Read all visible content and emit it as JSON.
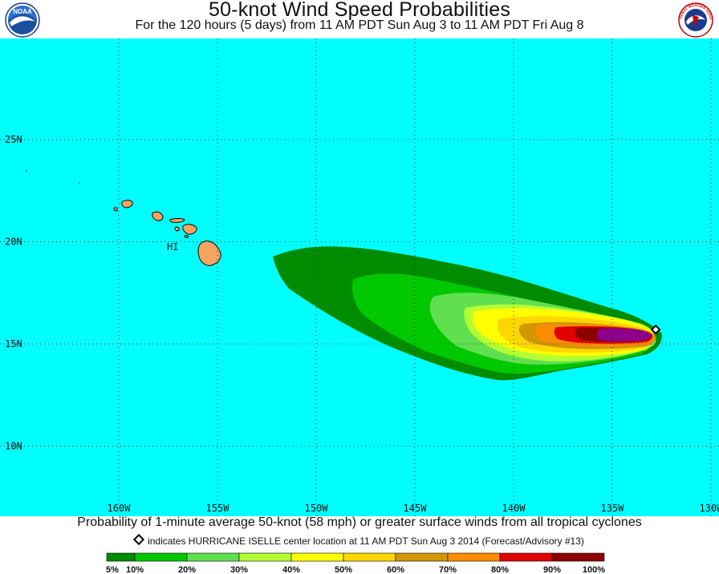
{
  "header": {
    "title": "50-knot Wind Speed Probabilities",
    "subtitle": "For the 120 hours (5 days) from 11 AM PDT Sun Aug 3 to 11 AM PDT Fri Aug 8"
  },
  "logos": {
    "left": {
      "text": "NOAA",
      "icon": "noaa-logo"
    },
    "right": {
      "text": "NATIONAL WEATHER SERVICE",
      "icon": "nws-logo"
    }
  },
  "map": {
    "ocean_color": "#00FFFF",
    "land_color": "#F4A460",
    "latitudes": [
      {
        "value": 25,
        "label": "25N"
      },
      {
        "value": 20,
        "label": "20N"
      },
      {
        "value": 15,
        "label": "15N"
      },
      {
        "value": 10,
        "label": "10N"
      }
    ],
    "longitudes": [
      {
        "value": -160,
        "label": "160W"
      },
      {
        "value": -155,
        "label": "155W"
      },
      {
        "value": -150,
        "label": "150W"
      },
      {
        "value": -145,
        "label": "145W"
      },
      {
        "value": -140,
        "label": "140W"
      },
      {
        "value": -135,
        "label": "135W"
      },
      {
        "value": -130,
        "label": "130W"
      }
    ],
    "state_label": "HI",
    "storm": {
      "name": "HURRICANE ISELLE",
      "lon": -132.8,
      "lat": 15.7
    }
  },
  "caption": "Probability of 1-minute average 50-knot (58 mph) or greater surface winds from all tropical cyclones",
  "indicator": "indicates HURRICANE ISELLE center location at 11 AM PDT Sun Aug 3 2014 (Forecast/Advisory #13)",
  "legend": {
    "labels": [
      "5%",
      "10%",
      "20%",
      "30%",
      "40%",
      "50%",
      "60%",
      "70%",
      "80%",
      "90%",
      "100%"
    ],
    "colors": [
      "#008C00",
      "#00C800",
      "#60E050",
      "#B4FF32",
      "#FFFF00",
      "#FFD700",
      "#D29600",
      "#FF8C00",
      "#E00000",
      "#8C0000",
      "#8C008C"
    ]
  }
}
